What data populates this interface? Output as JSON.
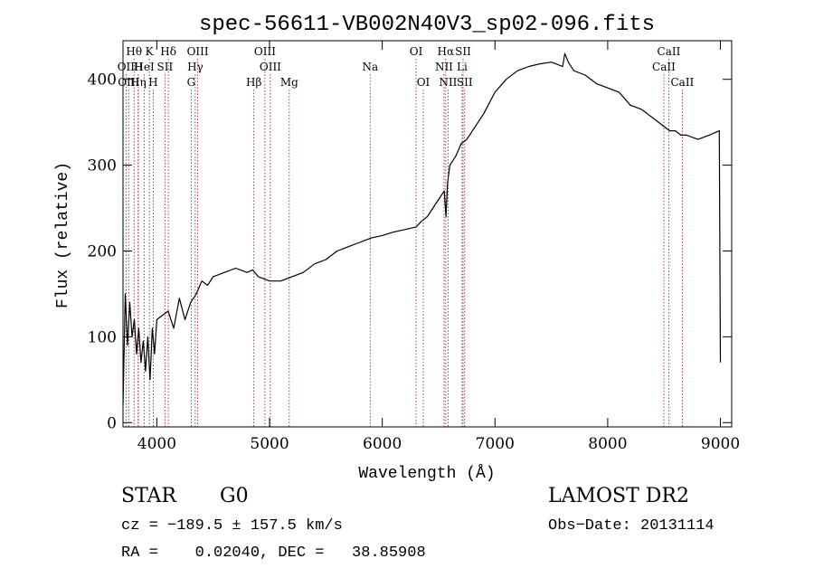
{
  "chart_data": {
    "type": "line",
    "title": "spec-56611-VB002N40V3_sp02-096.fits",
    "xlabel": "Wavelength (Å)",
    "ylabel": "Flux (relative)",
    "xlim": [
      3700,
      9100
    ],
    "ylim": [
      -5,
      445
    ],
    "x_ticks": [
      4000,
      5000,
      6000,
      7000,
      8000,
      9000
    ],
    "y_ticks": [
      0,
      100,
      200,
      300,
      400
    ],
    "grid": false,
    "line_color": "#000000",
    "marker_color": "#8b1a1a",
    "series": [
      {
        "x": [
          3700,
          3720,
          3740,
          3760,
          3780,
          3800,
          3820,
          3840,
          3860,
          3880,
          3900,
          3920,
          3940,
          3960,
          3980,
          4000,
          4050,
          4100,
          4150,
          4200,
          4250,
          4300,
          4350,
          4400,
          4450,
          4500,
          4600,
          4700,
          4800,
          4850,
          4900,
          5000,
          5100,
          5200,
          5300,
          5400,
          5500,
          5600,
          5700,
          5800,
          5900,
          6000,
          6100,
          6200,
          6300,
          6350,
          6400,
          6450,
          6500,
          6550,
          6565,
          6580,
          6600,
          6650,
          6700,
          6750,
          6800,
          6900,
          7000,
          7100,
          7200,
          7300,
          7400,
          7500,
          7600,
          7620,
          7650,
          7700,
          7800,
          7900,
          8000,
          8100,
          8200,
          8300,
          8400,
          8500,
          8550,
          8600,
          8650,
          8700,
          8800,
          8900,
          8990,
          9000
        ],
        "y": [
          20,
          150,
          90,
          140,
          100,
          120,
          80,
          110,
          70,
          95,
          60,
          100,
          50,
          110,
          80,
          120,
          125,
          130,
          110,
          145,
          120,
          140,
          150,
          165,
          160,
          170,
          175,
          180,
          175,
          178,
          170,
          165,
          165,
          170,
          175,
          185,
          190,
          200,
          205,
          210,
          215,
          218,
          222,
          225,
          228,
          235,
          240,
          250,
          260,
          270,
          240,
          280,
          300,
          310,
          325,
          330,
          340,
          360,
          385,
          400,
          410,
          415,
          418,
          420,
          415,
          430,
          420,
          410,
          405,
          395,
          390,
          385,
          370,
          365,
          355,
          345,
          340,
          340,
          335,
          335,
          330,
          335,
          340,
          70
        ]
      }
    ],
    "line_markers": [
      {
        "label": "Hθ",
        "wl": 3798,
        "row": 0
      },
      {
        "label": "K",
        "wl": 3934,
        "row": 0
      },
      {
        "label": "Hδ",
        "wl": 4102,
        "row": 0
      },
      {
        "label": "OIII",
        "wl": 4363,
        "row": 0
      },
      {
        "label": "OIII",
        "wl": 4959,
        "row": 0
      },
      {
        "label": "OI",
        "wl": 6300,
        "row": 0
      },
      {
        "label": "Hα",
        "wl": 6563,
        "row": 0
      },
      {
        "label": "SII",
        "wl": 6717,
        "row": 0
      },
      {
        "label": "CaII",
        "wl": 8542,
        "row": 0
      },
      {
        "label": "OII",
        "wl": 3727,
        "row": 1
      },
      {
        "label": "H",
        "wl": 3836,
        "row": 1
      },
      {
        "label": "HeI",
        "wl": 3889,
        "row": 1
      },
      {
        "label": "SII",
        "wl": 4072,
        "row": 1
      },
      {
        "label": "Hγ",
        "wl": 4341,
        "row": 1
      },
      {
        "label": "OIII",
        "wl": 5007,
        "row": 1
      },
      {
        "label": "Na",
        "wl": 5893,
        "row": 1
      },
      {
        "label": "NII",
        "wl": 6548,
        "row": 1
      },
      {
        "label": "Li",
        "wl": 6708,
        "row": 1
      },
      {
        "label": "CaII",
        "wl": 8498,
        "row": 1
      },
      {
        "label": "OIII",
        "wl": 3750,
        "row": 2
      },
      {
        "label": "Hη",
        "wl": 3835,
        "row": 2
      },
      {
        "label": "H",
        "wl": 3968,
        "row": 2
      },
      {
        "label": "G",
        "wl": 4305,
        "row": 2
      },
      {
        "label": "Hβ",
        "wl": 4861,
        "row": 2
      },
      {
        "label": "Mg",
        "wl": 5175,
        "row": 2
      },
      {
        "label": "OI",
        "wl": 6364,
        "row": 2
      },
      {
        "label": "NII",
        "wl": 6584,
        "row": 2
      },
      {
        "label": "SII",
        "wl": 6731,
        "row": 2
      },
      {
        "label": "CaII",
        "wl": 8662,
        "row": 2
      }
    ]
  },
  "info": {
    "class_label": "STAR",
    "subclass_label": "G0",
    "survey_label": "LAMOST DR2",
    "cz_text": "cz = −189.5 ± 157.5 km/s",
    "obs_date_text": "Obs−Date: 20131114",
    "radec_text": "RA =    0.02040, DEC =   38.85908"
  }
}
